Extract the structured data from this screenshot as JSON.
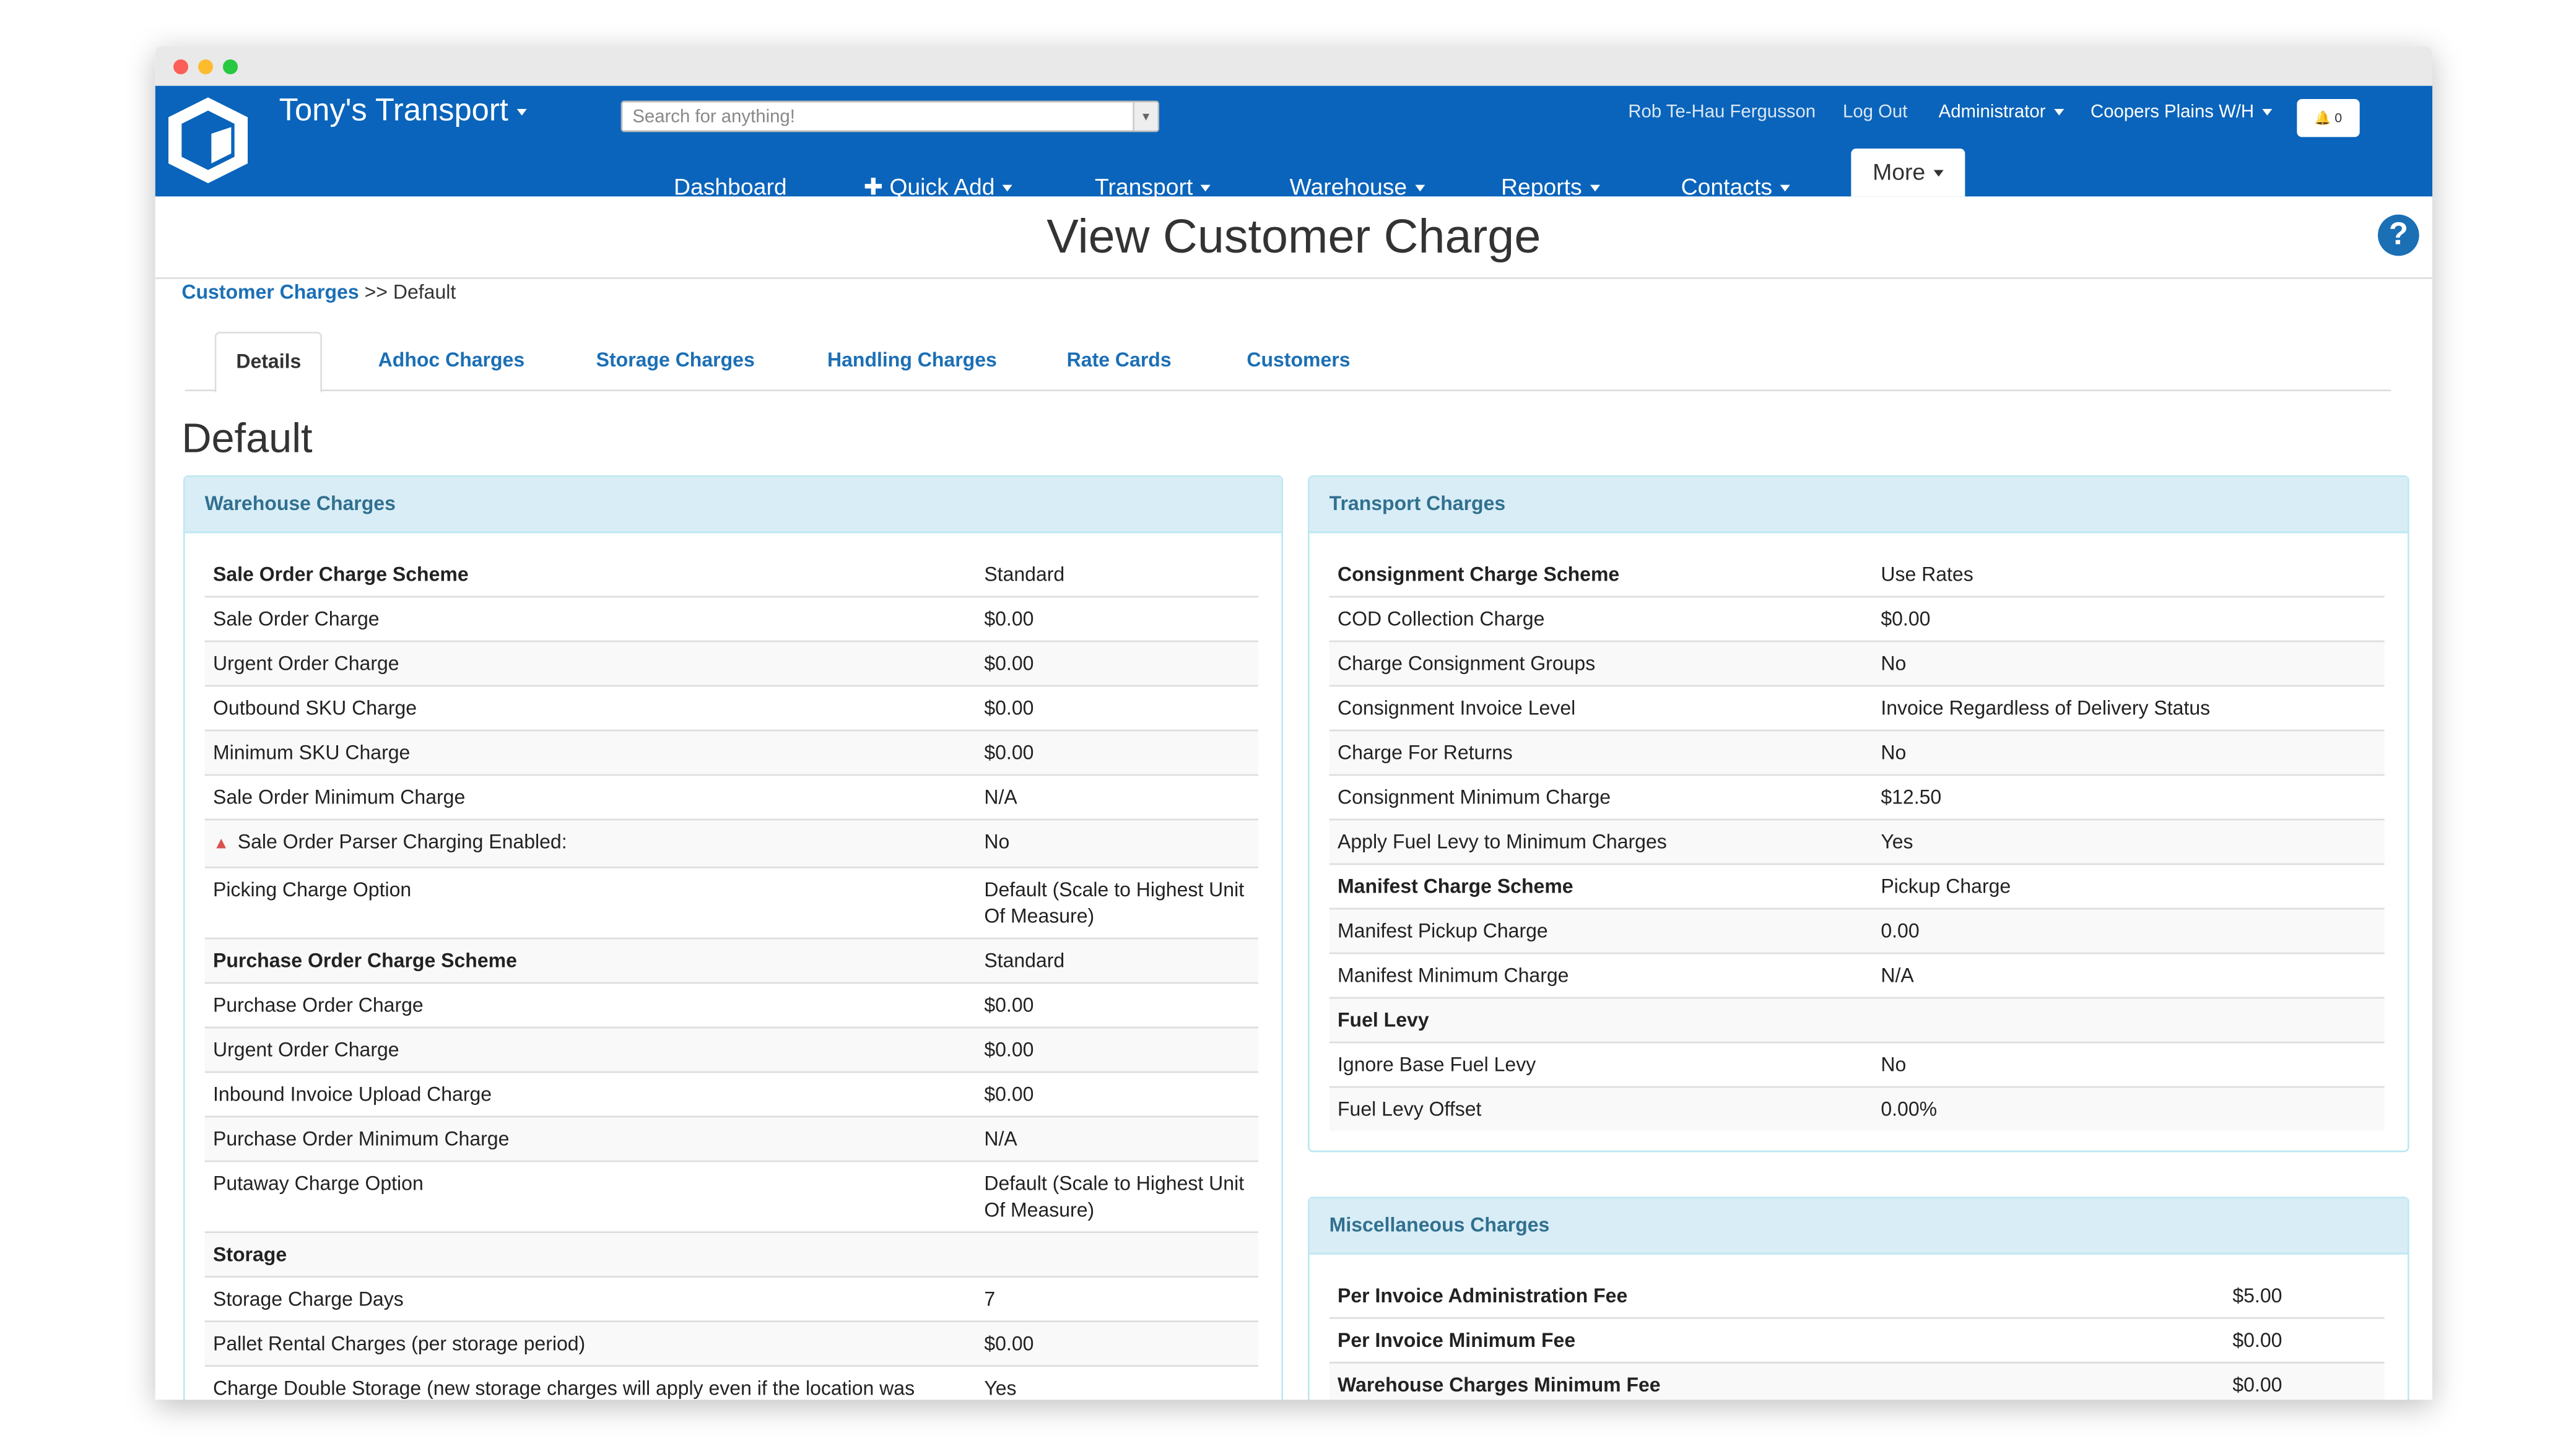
{
  "header": {
    "brand": "Tony's Transport",
    "search_placeholder": "Search for anything!",
    "user": "Rob Te-Hau Fergusson",
    "logout": "Log Out",
    "role": "Administrator",
    "warehouse": "Coopers Plains W/H",
    "notifications": "0",
    "nav": [
      "Dashboard",
      "Quick Add",
      "Transport",
      "Warehouse",
      "Reports",
      "Contacts",
      "More"
    ]
  },
  "page": {
    "title": "View Customer Charge",
    "breadcrumb": {
      "link": "Customer Charges",
      "current": ">> Default"
    },
    "tabs": [
      "Details",
      "Adhoc Charges",
      "Storage Charges",
      "Handling Charges",
      "Rate Cards",
      "Customers"
    ],
    "heading": "Default"
  },
  "panels": [
    {
      "title": "Warehouse Charges",
      "rows": [
        {
          "label": "Sale Order Charge Scheme",
          "value": "Standard",
          "bold": true
        },
        {
          "label": "Sale Order Charge",
          "value": "$0.00"
        },
        {
          "label": "Urgent Order Charge",
          "value": "$0.00"
        },
        {
          "label": "Outbound SKU Charge",
          "value": "$0.00"
        },
        {
          "label": "Minimum SKU Charge",
          "value": "$0.00"
        },
        {
          "label": "Sale Order Minimum Charge",
          "value": "N/A"
        },
        {
          "label": "Sale Order Parser Charging Enabled:",
          "value": "No",
          "warning": true
        },
        {
          "label": "Picking Charge Option",
          "value": "Default (Scale to Highest Unit Of Measure)"
        },
        {
          "label": "Purchase Order Charge Scheme",
          "value": "Standard",
          "bold": true
        },
        {
          "label": "Purchase Order Charge",
          "value": "$0.00"
        },
        {
          "label": "Urgent Order Charge",
          "value": "$0.00"
        },
        {
          "label": "Inbound Invoice Upload Charge",
          "value": "$0.00"
        },
        {
          "label": "Purchase Order Minimum Charge",
          "value": "N/A"
        },
        {
          "label": "Putaway Charge Option",
          "value": "Default (Scale to Highest Unit Of Measure)"
        },
        {
          "label": "Storage",
          "bold": true
        },
        {
          "label": "Storage Charge Days",
          "value": "7"
        },
        {
          "label": "Pallet Rental Charges (per storage period)",
          "value": "$0.00"
        },
        {
          "label": "Charge Double Storage (new storage charges will apply even if the location was",
          "value": "Yes"
        }
      ]
    },
    {
      "title": "Transport Charges",
      "rows": [
        {
          "label": "Consignment Charge Scheme",
          "value": "Use Rates",
          "bold": true
        },
        {
          "label": "COD Collection Charge",
          "value": "$0.00"
        },
        {
          "label": "Charge Consignment Groups",
          "value": "No"
        },
        {
          "label": "Consignment Invoice Level",
          "value": "Invoice Regardless of Delivery Status"
        },
        {
          "label": "Charge For Returns",
          "value": "No"
        },
        {
          "label": "Consignment Minimum Charge",
          "value": "$12.50"
        },
        {
          "label": "Apply Fuel Levy to Minimum Charges",
          "value": "Yes"
        },
        {
          "label": "Manifest Charge Scheme",
          "value": "Pickup Charge",
          "bold": true
        },
        {
          "label": "Manifest Pickup Charge",
          "value": "0.00"
        },
        {
          "label": "Manifest Minimum Charge",
          "value": "N/A"
        },
        {
          "label": "Fuel Levy",
          "bold": true
        },
        {
          "label": "Ignore Base Fuel Levy",
          "value": "No"
        },
        {
          "label": "Fuel Levy Offset",
          "value": "0.00%"
        }
      ]
    },
    {
      "title": "Miscellaneous Charges",
      "rows": [
        {
          "label": "Per Invoice Administration Fee",
          "value": "$5.00",
          "bold": true
        },
        {
          "label": "Per Invoice Minimum Fee",
          "value": "$0.00",
          "bold": true
        },
        {
          "label": "Warehouse Charges Minimum Fee",
          "value": "$0.00",
          "bold": true
        }
      ]
    }
  ]
}
